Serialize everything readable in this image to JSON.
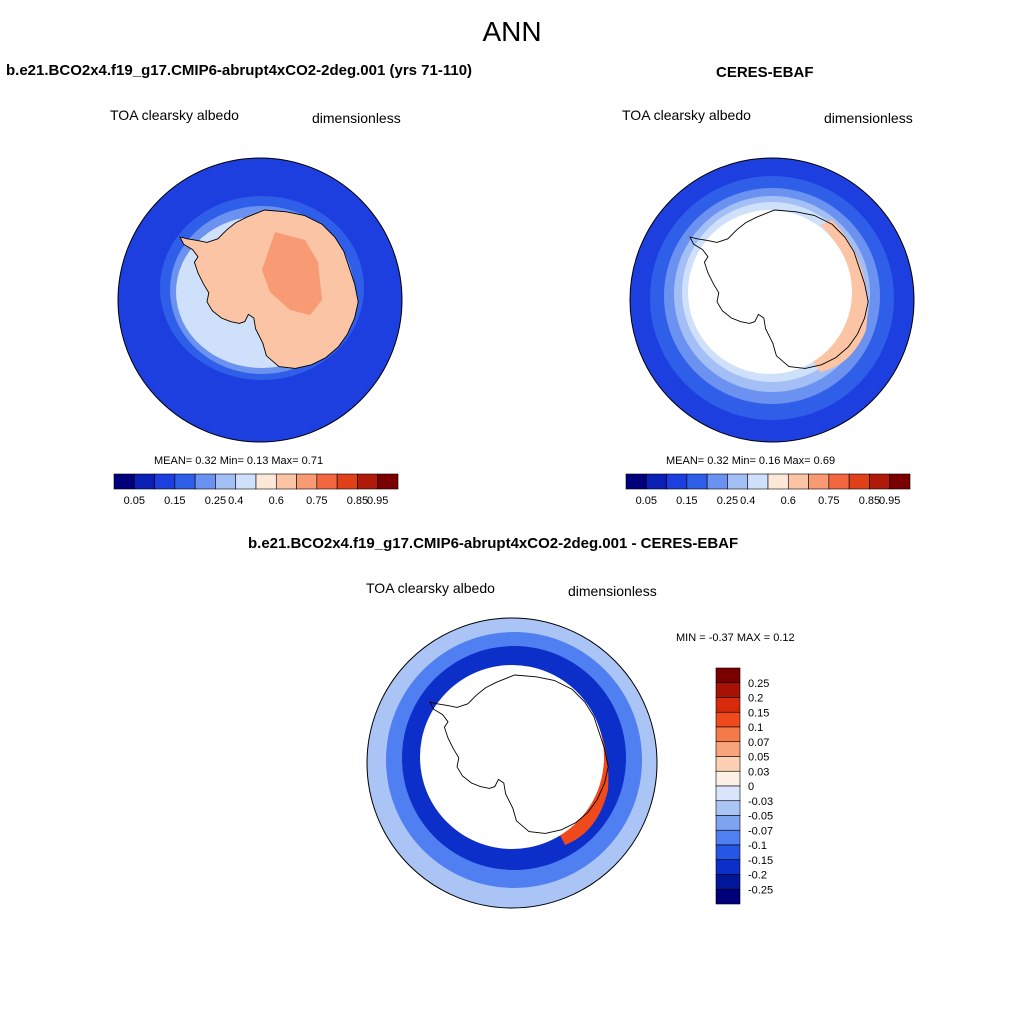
{
  "page": {
    "title": "ANN"
  },
  "panels": [
    {
      "id": "model",
      "title": "b.e21.BCO2x4.f19_g17.CMIP6-abrupt4xCO2-2deg.001 (yrs 71-110)",
      "variable": "TOA clearsky albedo",
      "units": "dimensionless",
      "stats_text": "MEAN=   0.32  Min=   0.13  Max=   0.71"
    },
    {
      "id": "obs",
      "title": "CERES-EBAF",
      "variable": "TOA clearsky albedo",
      "units": "dimensionless",
      "stats_text": "MEAN=   0.32  Min=   0.16  Max=   0.69"
    },
    {
      "id": "diff",
      "title": "b.e21.BCO2x4.f19_g17.CMIP6-abrupt4xCO2-2deg.001 - CERES-EBAF",
      "variable": "TOA clearsky albedo",
      "units": "dimensionless",
      "stats_text": "MIN =  -0.37 MAX =   0.12"
    }
  ],
  "colorbar_abs": {
    "labels": [
      "0.05",
      "0.15",
      "0.25",
      "0.4",
      "0.6",
      "0.75",
      "0.85",
      "0.95"
    ],
    "colors": [
      "#00007a",
      "#0a1fb4",
      "#1e3fe0",
      "#2f5ee8",
      "#6b92f0",
      "#a4bff5",
      "#cfe0fb",
      "#fde7d8",
      "#fbc4a4",
      "#f89a74",
      "#f3683f",
      "#e0401a",
      "#b01a0a",
      "#7a0000"
    ]
  },
  "colorbar_diff": {
    "labels": [
      "0.25",
      "0.2",
      "0.15",
      "0.1",
      "0.07",
      "0.05",
      "0.03",
      "0",
      "-0.03",
      "-0.05",
      "-0.07",
      "-0.1",
      "-0.15",
      "-0.2",
      "-0.25"
    ],
    "colors": [
      "#7a0000",
      "#a81204",
      "#d62a0a",
      "#f04a1c",
      "#f57a4a",
      "#f9a37c",
      "#fdd0b4",
      "#fdf0e4",
      "#d9e6fb",
      "#aac4f6",
      "#7ea4f1",
      "#4f7ff0",
      "#2556e6",
      "#0b2fc8",
      "#02169a",
      "#00007a"
    ]
  },
  "colors": {
    "ocean_deep": "#1e3fe0",
    "ocean_mid": "#2f5ee8",
    "ocean_light": "#6b92f0",
    "ocean_pale": "#a4bff5",
    "ice_pale": "#cfe0fb",
    "land_peach": "#fbc4a4",
    "land_orange": "#f89a74",
    "diff_pale": "#aac4f6",
    "diff_mid": "#4f7ff0",
    "diff_deep": "#0b2fc8",
    "diff_red": "#f04a1c"
  }
}
